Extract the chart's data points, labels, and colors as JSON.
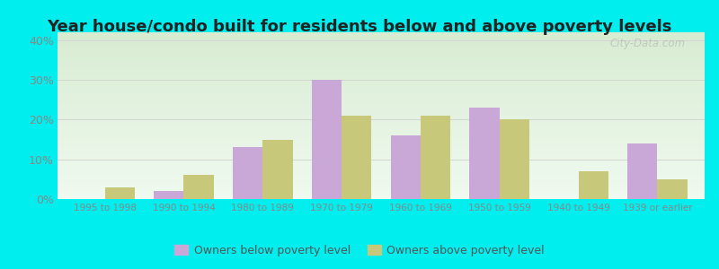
{
  "title": "Year house/condo built for residents below and above poverty levels",
  "categories": [
    "1995 to 1998",
    "1990 to 1994",
    "1980 to 1989",
    "1970 to 1979",
    "1960 to 1969",
    "1950 to 1959",
    "1940 to 1949",
    "1939 or earlier"
  ],
  "below_poverty": [
    0,
    2,
    13,
    30,
    16,
    23,
    0,
    14
  ],
  "above_poverty": [
    3,
    6,
    15,
    21,
    21,
    20,
    7,
    5
  ],
  "below_color": "#c9a8d8",
  "above_color": "#c8c87a",
  "ylim": [
    0,
    42
  ],
  "yticks": [
    0,
    10,
    20,
    30,
    40
  ],
  "bar_width": 0.38,
  "legend_below": "Owners below poverty level",
  "legend_above": "Owners above poverty level",
  "outer_bg": "#00eeee",
  "grid_color": "#d0d0d0",
  "title_fontsize": 13,
  "axis_bg_color_top": "#d8ecd2",
  "axis_bg_color_bottom": "#f0faf0",
  "watermark": "City-Data.com",
  "tick_label_color": "#888888",
  "title_color": "#222222"
}
